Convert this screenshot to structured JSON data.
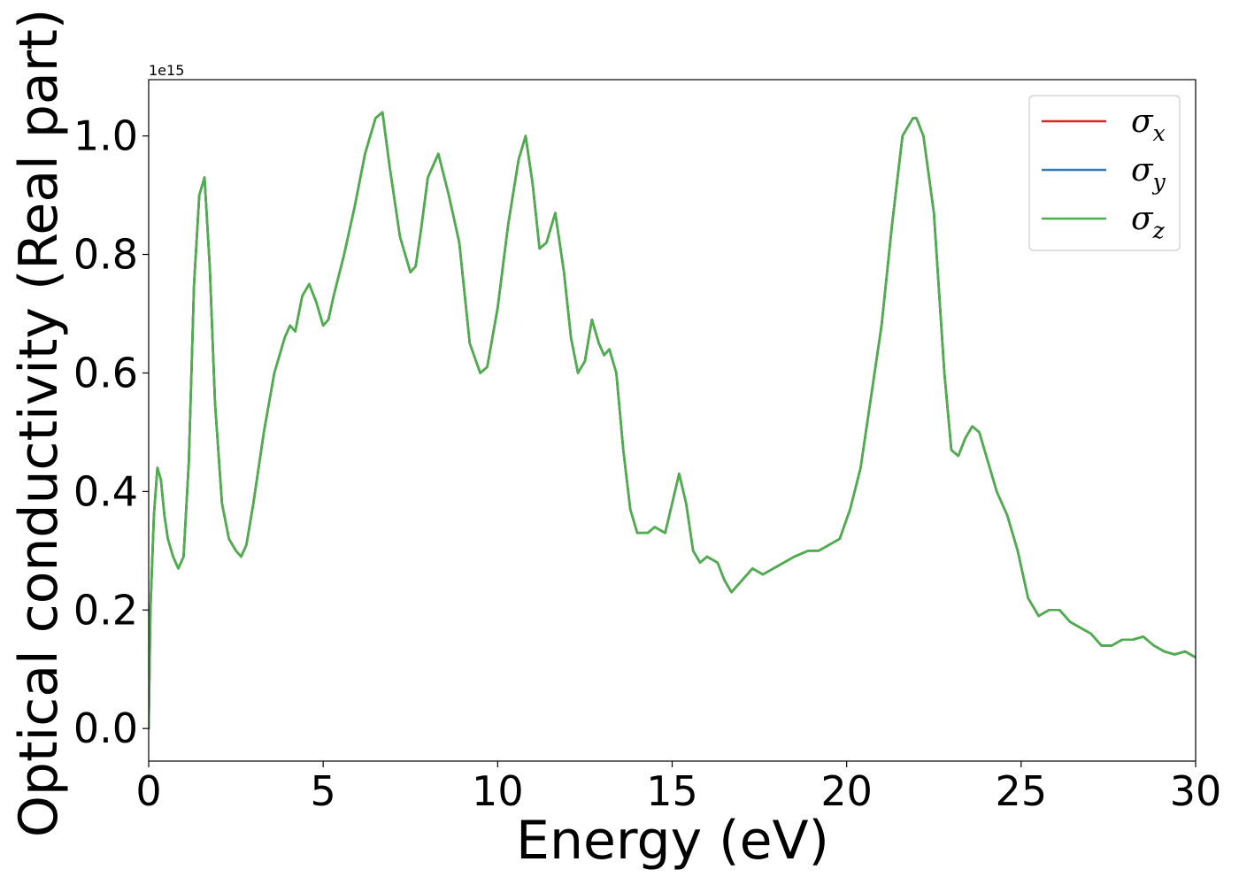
{
  "chart_data": {
    "type": "line",
    "xlabel": "Energy (eV)",
    "ylabel": "Optical conductivity (Real part)",
    "y_offset_label": "1e15",
    "xlim": [
      0,
      30
    ],
    "ylim": [
      -0.055,
      1.095
    ],
    "x_ticks": [
      0,
      5,
      10,
      15,
      20,
      25,
      30
    ],
    "x_tick_labels": [
      "0",
      "5",
      "10",
      "15",
      "20",
      "25",
      "30"
    ],
    "y_ticks": [
      0.0,
      0.2,
      0.4,
      0.6,
      0.8,
      1.0
    ],
    "y_tick_labels": [
      "0.0",
      "0.2",
      "0.4",
      "0.6",
      "0.8",
      "1.0"
    ],
    "grid": false,
    "legend_position": "top-right",
    "x": [
      0,
      0.05,
      0.15,
      0.25,
      0.35,
      0.45,
      0.55,
      0.7,
      0.85,
      1.0,
      1.15,
      1.3,
      1.45,
      1.6,
      1.75,
      1.9,
      2.1,
      2.3,
      2.5,
      2.65,
      2.8,
      3.0,
      3.3,
      3.6,
      3.9,
      4.05,
      4.2,
      4.4,
      4.6,
      4.8,
      5.0,
      5.15,
      5.3,
      5.6,
      5.9,
      6.2,
      6.5,
      6.7,
      6.9,
      7.2,
      7.5,
      7.65,
      7.8,
      8.0,
      8.3,
      8.6,
      8.9,
      9.2,
      9.5,
      9.7,
      10.0,
      10.3,
      10.6,
      10.8,
      11.0,
      11.2,
      11.4,
      11.65,
      11.9,
      12.1,
      12.3,
      12.5,
      12.7,
      12.9,
      13.05,
      13.2,
      13.4,
      13.6,
      13.8,
      14.0,
      14.3,
      14.5,
      14.8,
      15.0,
      15.2,
      15.4,
      15.6,
      15.8,
      16.0,
      16.3,
      16.5,
      16.7,
      17.0,
      17.3,
      17.6,
      17.9,
      18.2,
      18.5,
      18.9,
      19.2,
      19.5,
      19.8,
      20.1,
      20.4,
      20.7,
      21.0,
      21.3,
      21.6,
      21.9,
      22.0,
      22.2,
      22.5,
      22.8,
      23.0,
      23.2,
      23.4,
      23.6,
      23.8,
      24.0,
      24.3,
      24.6,
      24.9,
      25.2,
      25.5,
      25.8,
      26.1,
      26.4,
      26.7,
      27.0,
      27.3,
      27.6,
      27.9,
      28.2,
      28.5,
      28.8,
      29.1,
      29.4,
      29.7,
      30.0
    ],
    "series": [
      {
        "name": "σx",
        "color": "#d62728",
        "values": [
          0.0,
          0.2,
          0.36,
          0.44,
          0.42,
          0.36,
          0.32,
          0.29,
          0.27,
          0.29,
          0.45,
          0.75,
          0.9,
          0.93,
          0.78,
          0.55,
          0.38,
          0.32,
          0.3,
          0.29,
          0.31,
          0.38,
          0.5,
          0.6,
          0.66,
          0.68,
          0.67,
          0.73,
          0.75,
          0.72,
          0.68,
          0.69,
          0.73,
          0.8,
          0.88,
          0.97,
          1.03,
          1.04,
          0.95,
          0.83,
          0.77,
          0.78,
          0.84,
          0.93,
          0.97,
          0.9,
          0.82,
          0.65,
          0.6,
          0.61,
          0.71,
          0.85,
          0.96,
          1.0,
          0.92,
          0.81,
          0.82,
          0.87,
          0.77,
          0.66,
          0.6,
          0.62,
          0.69,
          0.65,
          0.63,
          0.64,
          0.6,
          0.47,
          0.37,
          0.33,
          0.33,
          0.34,
          0.33,
          0.38,
          0.43,
          0.38,
          0.3,
          0.28,
          0.29,
          0.28,
          0.25,
          0.23,
          0.25,
          0.27,
          0.26,
          0.27,
          0.28,
          0.29,
          0.3,
          0.3,
          0.31,
          0.32,
          0.37,
          0.44,
          0.56,
          0.68,
          0.85,
          1.0,
          1.03,
          1.03,
          1.0,
          0.87,
          0.6,
          0.47,
          0.46,
          0.49,
          0.51,
          0.5,
          0.46,
          0.4,
          0.36,
          0.3,
          0.22,
          0.19,
          0.2,
          0.2,
          0.18,
          0.17,
          0.16,
          0.14,
          0.14,
          0.15,
          0.15,
          0.155,
          0.14,
          0.13,
          0.125,
          0.13,
          0.12
        ]
      },
      {
        "name": "σy",
        "color": "#377eb8",
        "values": [
          0.0,
          0.2,
          0.36,
          0.44,
          0.42,
          0.36,
          0.32,
          0.29,
          0.27,
          0.29,
          0.45,
          0.75,
          0.9,
          0.93,
          0.78,
          0.55,
          0.38,
          0.32,
          0.3,
          0.29,
          0.31,
          0.38,
          0.5,
          0.6,
          0.66,
          0.68,
          0.67,
          0.73,
          0.75,
          0.72,
          0.68,
          0.69,
          0.73,
          0.8,
          0.88,
          0.97,
          1.03,
          1.04,
          0.95,
          0.83,
          0.77,
          0.78,
          0.84,
          0.93,
          0.97,
          0.9,
          0.82,
          0.65,
          0.6,
          0.61,
          0.71,
          0.85,
          0.96,
          1.0,
          0.92,
          0.81,
          0.82,
          0.87,
          0.77,
          0.66,
          0.6,
          0.62,
          0.69,
          0.65,
          0.63,
          0.64,
          0.6,
          0.47,
          0.37,
          0.33,
          0.33,
          0.34,
          0.33,
          0.38,
          0.43,
          0.38,
          0.3,
          0.28,
          0.29,
          0.28,
          0.25,
          0.23,
          0.25,
          0.27,
          0.26,
          0.27,
          0.28,
          0.29,
          0.3,
          0.3,
          0.31,
          0.32,
          0.37,
          0.44,
          0.56,
          0.68,
          0.85,
          1.0,
          1.03,
          1.03,
          1.0,
          0.87,
          0.6,
          0.47,
          0.46,
          0.49,
          0.51,
          0.5,
          0.46,
          0.4,
          0.36,
          0.3,
          0.22,
          0.19,
          0.2,
          0.2,
          0.18,
          0.17,
          0.16,
          0.14,
          0.14,
          0.15,
          0.15,
          0.155,
          0.14,
          0.13,
          0.125,
          0.13,
          0.12
        ]
      },
      {
        "name": "σz",
        "color": "#4daf4a",
        "values": [
          0.0,
          0.2,
          0.36,
          0.44,
          0.42,
          0.36,
          0.32,
          0.29,
          0.27,
          0.29,
          0.45,
          0.75,
          0.9,
          0.93,
          0.78,
          0.55,
          0.38,
          0.32,
          0.3,
          0.29,
          0.31,
          0.38,
          0.5,
          0.6,
          0.66,
          0.68,
          0.67,
          0.73,
          0.75,
          0.72,
          0.68,
          0.69,
          0.73,
          0.8,
          0.88,
          0.97,
          1.03,
          1.04,
          0.95,
          0.83,
          0.77,
          0.78,
          0.84,
          0.93,
          0.97,
          0.9,
          0.82,
          0.65,
          0.6,
          0.61,
          0.71,
          0.85,
          0.96,
          1.0,
          0.92,
          0.81,
          0.82,
          0.87,
          0.77,
          0.66,
          0.6,
          0.62,
          0.69,
          0.65,
          0.63,
          0.64,
          0.6,
          0.47,
          0.37,
          0.33,
          0.33,
          0.34,
          0.33,
          0.38,
          0.43,
          0.38,
          0.3,
          0.28,
          0.29,
          0.28,
          0.25,
          0.23,
          0.25,
          0.27,
          0.26,
          0.27,
          0.28,
          0.29,
          0.3,
          0.3,
          0.31,
          0.32,
          0.37,
          0.44,
          0.56,
          0.68,
          0.85,
          1.0,
          1.03,
          1.03,
          1.0,
          0.87,
          0.6,
          0.47,
          0.46,
          0.49,
          0.51,
          0.5,
          0.46,
          0.4,
          0.36,
          0.3,
          0.22,
          0.19,
          0.2,
          0.2,
          0.18,
          0.17,
          0.16,
          0.14,
          0.14,
          0.15,
          0.15,
          0.155,
          0.14,
          0.13,
          0.125,
          0.13,
          0.12
        ]
      }
    ]
  }
}
